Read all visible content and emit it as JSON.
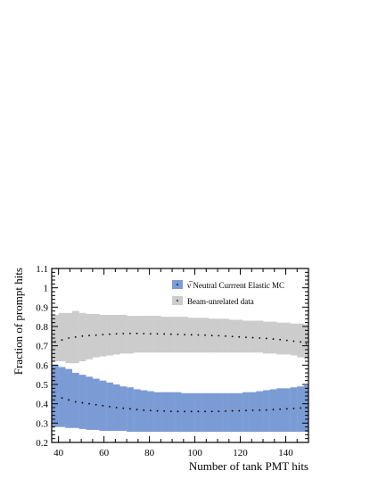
{
  "chart_data": {
    "type": "band",
    "xlabel": "Number of tank PMT hits",
    "ylabel": "Fraction of prompt hits",
    "xlim": [
      37,
      150
    ],
    "ylim": [
      0.2,
      1.1
    ],
    "x_ticks": [
      40,
      60,
      80,
      100,
      120,
      140
    ],
    "y_ticks": [
      0.2,
      0.3,
      0.4,
      0.5,
      0.6,
      0.7,
      0.8,
      0.9,
      1,
      1.1
    ],
    "x_tick_labels": [
      "40",
      "60",
      "80",
      "100",
      "120",
      "140"
    ],
    "y_tick_labels": [
      "0.2",
      "0.3",
      "0.4",
      "0.5",
      "0.6",
      "0.7",
      "0.8",
      "0.9",
      "1",
      "1.1"
    ],
    "legend_position": "top-right",
    "bin_edges": [
      37,
      40,
      43,
      46,
      49,
      52,
      55,
      58,
      61,
      64,
      67,
      70,
      73,
      76,
      79,
      82,
      85,
      88,
      91,
      94,
      97,
      100,
      103,
      106,
      109,
      112,
      115,
      118,
      121,
      124,
      127,
      130,
      133,
      136,
      139,
      142,
      145,
      148,
      150
    ],
    "series": [
      {
        "name": "Beam-unrelated data",
        "color": "#cccccc",
        "mean": [
          0.72,
          0.73,
          0.74,
          0.745,
          0.75,
          0.753,
          0.755,
          0.758,
          0.76,
          0.762,
          0.763,
          0.764,
          0.764,
          0.763,
          0.762,
          0.762,
          0.761,
          0.76,
          0.759,
          0.758,
          0.757,
          0.756,
          0.755,
          0.753,
          0.752,
          0.75,
          0.748,
          0.746,
          0.744,
          0.742,
          0.74,
          0.738,
          0.735,
          0.732,
          0.728,
          0.724,
          0.72,
          0.71
        ],
        "lower": [
          0.62,
          0.62,
          0.61,
          0.61,
          0.62,
          0.63,
          0.64,
          0.645,
          0.65,
          0.655,
          0.66,
          0.66,
          0.665,
          0.665,
          0.665,
          0.665,
          0.665,
          0.665,
          0.665,
          0.665,
          0.665,
          0.665,
          0.665,
          0.665,
          0.665,
          0.665,
          0.665,
          0.665,
          0.665,
          0.665,
          0.665,
          0.66,
          0.66,
          0.655,
          0.655,
          0.65,
          0.64,
          0.63
        ],
        "upper": [
          0.86,
          0.87,
          0.87,
          0.88,
          0.87,
          0.865,
          0.865,
          0.86,
          0.86,
          0.86,
          0.86,
          0.855,
          0.855,
          0.855,
          0.855,
          0.855,
          0.85,
          0.85,
          0.85,
          0.85,
          0.845,
          0.845,
          0.845,
          0.84,
          0.84,
          0.84,
          0.835,
          0.835,
          0.83,
          0.83,
          0.83,
          0.825,
          0.825,
          0.82,
          0.82,
          0.815,
          0.815,
          0.81
        ]
      },
      {
        "name": "ν̅ Neutral Currrent Elastic MC",
        "color": "#7b9bd5",
        "mean": [
          0.44,
          0.43,
          0.42,
          0.41,
          0.405,
          0.4,
          0.395,
          0.39,
          0.385,
          0.38,
          0.377,
          0.374,
          0.37,
          0.367,
          0.365,
          0.363,
          0.362,
          0.361,
          0.36,
          0.36,
          0.36,
          0.36,
          0.36,
          0.36,
          0.361,
          0.362,
          0.363,
          0.364,
          0.365,
          0.366,
          0.367,
          0.368,
          0.37,
          0.372,
          0.374,
          0.376,
          0.378,
          0.38
        ],
        "lower": [
          0.28,
          0.28,
          0.275,
          0.275,
          0.27,
          0.265,
          0.265,
          0.26,
          0.26,
          0.26,
          0.26,
          0.255,
          0.255,
          0.255,
          0.255,
          0.255,
          0.255,
          0.255,
          0.255,
          0.255,
          0.255,
          0.255,
          0.255,
          0.255,
          0.255,
          0.255,
          0.255,
          0.255,
          0.255,
          0.255,
          0.255,
          0.255,
          0.255,
          0.255,
          0.255,
          0.255,
          0.255,
          0.255
        ],
        "upper": [
          0.6,
          0.59,
          0.58,
          0.56,
          0.55,
          0.54,
          0.53,
          0.52,
          0.51,
          0.5,
          0.49,
          0.485,
          0.475,
          0.47,
          0.465,
          0.46,
          0.46,
          0.46,
          0.46,
          0.455,
          0.455,
          0.455,
          0.455,
          0.455,
          0.455,
          0.455,
          0.455,
          0.455,
          0.46,
          0.46,
          0.465,
          0.47,
          0.475,
          0.48,
          0.48,
          0.485,
          0.49,
          0.495
        ]
      }
    ]
  }
}
